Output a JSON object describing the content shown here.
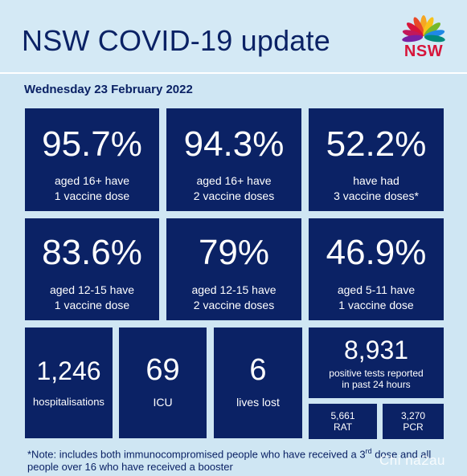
{
  "header": {
    "title": "NSW COVID-19 update",
    "logo_text": "NSW"
  },
  "date": "Wednesday 23 February 2022",
  "stats_row1": [
    {
      "value": "95.7%",
      "desc": "aged 16+ have\n1 vaccine dose"
    },
    {
      "value": "94.3%",
      "desc": "aged 16+ have\n2 vaccine doses"
    },
    {
      "value": "52.2%",
      "desc": "have had\n3 vaccine doses*"
    }
  ],
  "stats_row2": [
    {
      "value": "83.6%",
      "desc": "aged 12-15 have\n1 vaccine dose"
    },
    {
      "value": "79%",
      "desc": "aged 12-15 have\n2 vaccine doses"
    },
    {
      "value": "46.9%",
      "desc": "aged 5-11 have\n1 vaccine dose"
    }
  ],
  "stats_row3": {
    "hospitalisations": {
      "value": "1,246",
      "label": "hospitalisations"
    },
    "icu": {
      "value": "69",
      "label": "ICU"
    },
    "deaths": {
      "value": "6",
      "label": "lives lost"
    },
    "tests": {
      "value": "8,931",
      "label": "positive tests reported\nin past 24 hours"
    },
    "rat": {
      "value": "5,661",
      "label": "RAT"
    },
    "pcr": {
      "value": "3,270",
      "label": "PCR"
    }
  },
  "note": {
    "prefix": "*Note: includes both immunocompromised people who have received a 3",
    "superscript": "rd",
    "suffix": " dose and all people over 16 who have received a booster"
  },
  "watermark": "Chi na2au",
  "colors": {
    "background": "#cfe6f3",
    "card": "#0b2265",
    "title": "#0b2265",
    "nsw_red": "#d7153a"
  }
}
